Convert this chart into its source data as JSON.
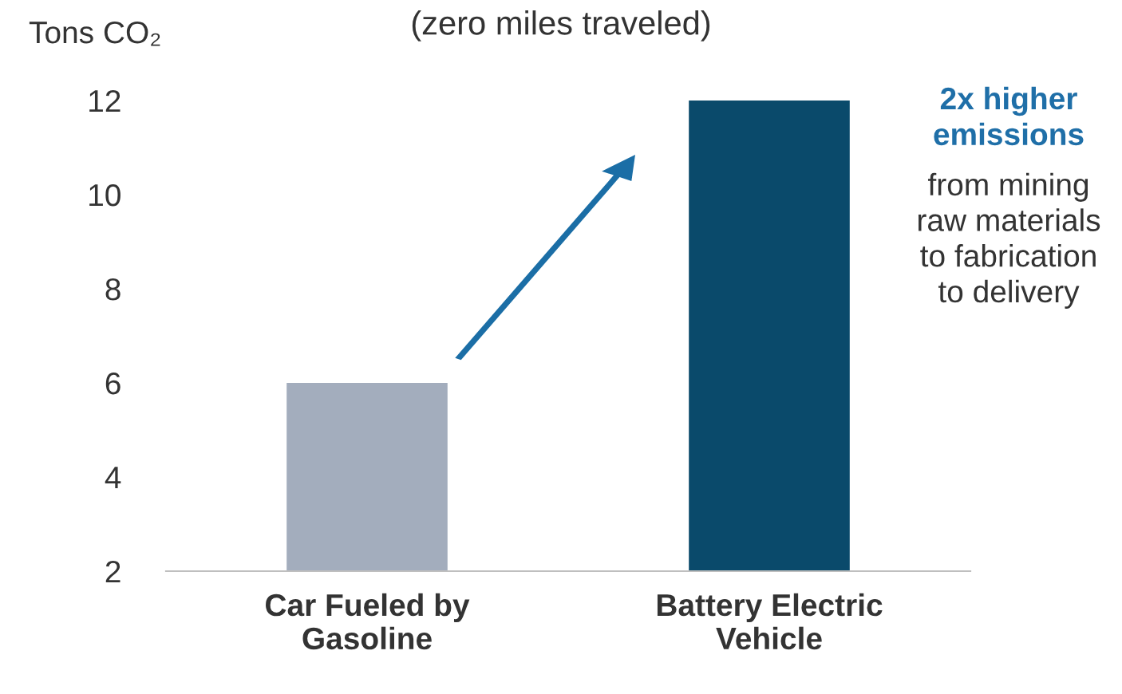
{
  "chart_data": {
    "type": "bar",
    "title": "(zero miles traveled)",
    "ylabel": "Tons CO₂",
    "categories": [
      "Car Fueled by\nGasoline",
      "Battery Electric\nVehicle"
    ],
    "values": [
      6,
      12
    ],
    "colors": [
      "#a3adbd",
      "#0a4a6b"
    ],
    "ylim": [
      2,
      12
    ],
    "yticks": [
      2,
      4,
      6,
      8,
      10,
      12
    ],
    "grid": false,
    "annotations": [
      "2x higher\nemissions",
      "from mining\nraw materials\nto fabrication\nto delivery"
    ]
  }
}
